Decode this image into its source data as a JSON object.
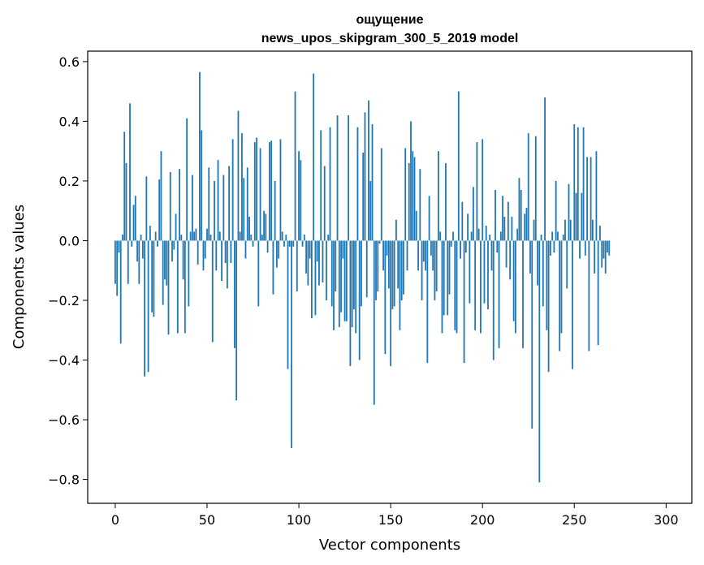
{
  "chart_data": {
    "type": "bar",
    "title_line1": "ощущение",
    "title_line2": "news_upos_skipgram_300_5_2019 model",
    "xlabel": "Vector components",
    "ylabel": "Components values",
    "xlim": [
      -15,
      314
    ],
    "ylim": [
      -0.88,
      0.635
    ],
    "x_ticks": [
      0,
      50,
      100,
      150,
      200,
      250,
      300
    ],
    "x_tick_labels": [
      "0",
      "50",
      "100",
      "150",
      "200",
      "250",
      "300"
    ],
    "y_ticks": [
      -0.8,
      -0.6,
      -0.4,
      -0.2,
      0.0,
      0.2,
      0.4,
      0.6
    ],
    "y_tick_labels": [
      "−0.8",
      "−0.6",
      "−0.4",
      "−0.2",
      "0.0",
      "0.2",
      "0.4",
      "0.6"
    ],
    "bar_color": "#1f77b4",
    "series": [
      {
        "name": "ощущение",
        "x_start": 0,
        "values": [
          -0.145,
          -0.185,
          -0.04,
          -0.345,
          0.02,
          0.365,
          0.26,
          -0.145,
          0.46,
          -0.02,
          0.12,
          0.15,
          -0.07,
          -0.145,
          0.02,
          -0.06,
          -0.455,
          0.215,
          -0.44,
          0.05,
          -0.24,
          -0.255,
          0.03,
          -0.02,
          0.205,
          0.3,
          -0.215,
          -0.13,
          -0.15,
          -0.315,
          0.23,
          -0.07,
          -0.03,
          0.09,
          -0.31,
          0.24,
          0.02,
          -0.13,
          -0.31,
          0.41,
          -0.22,
          0.03,
          0.22,
          0.03,
          0.04,
          -0.08,
          0.565,
          0.37,
          -0.1,
          -0.06,
          0.04,
          0.245,
          0.02,
          -0.34,
          0.2,
          -0.1,
          0.27,
          0.03,
          -0.135,
          0.22,
          -0.075,
          -0.16,
          0.25,
          -0.075,
          0.34,
          -0.36,
          -0.535,
          0.435,
          0.03,
          0.36,
          0.21,
          -0.06,
          0.245,
          0.08,
          0.02,
          -0.02,
          0.33,
          0.345,
          -0.22,
          0.31,
          0.02,
          0.1,
          0.09,
          -0.04,
          0.33,
          0.335,
          -0.18,
          0.2,
          -0.09,
          -0.06,
          0.34,
          0.03,
          -0.02,
          0.02,
          -0.43,
          -0.02,
          -0.695,
          -0.02,
          0.5,
          -0.17,
          0.3,
          0.27,
          -0.02,
          0.02,
          -0.11,
          -0.15,
          -0.06,
          -0.26,
          0.56,
          -0.25,
          -0.07,
          -0.15,
          0.37,
          -0.14,
          0.25,
          -0.2,
          0.02,
          0.38,
          -0.22,
          -0.3,
          -0.17,
          0.42,
          -0.29,
          -0.24,
          -0.06,
          -0.27,
          -0.27,
          0.42,
          -0.42,
          -0.29,
          -0.23,
          -0.31,
          0.38,
          -0.4,
          -0.22,
          0.295,
          0.43,
          -0.19,
          0.47,
          0.2,
          0.39,
          -0.55,
          -0.2,
          -0.17,
          -0.01,
          0.31,
          -0.1,
          -0.38,
          -0.05,
          -0.16,
          -0.42,
          -0.23,
          -0.22,
          0.07,
          -0.16,
          -0.3,
          -0.2,
          -0.18,
          0.31,
          -0.1,
          0.26,
          0.4,
          0.3,
          0.28,
          0.1,
          -0.1,
          0.24,
          -0.2,
          -0.07,
          -0.1,
          -0.41,
          0.15,
          -0.05,
          -0.1,
          -0.2,
          -0.17,
          0.3,
          0.03,
          -0.31,
          -0.25,
          0.26,
          -0.25,
          -0.18,
          -0.02,
          0.03,
          -0.3,
          -0.31,
          0.5,
          -0.06,
          0.13,
          -0.41,
          -0.04,
          0.09,
          -0.21,
          0.03,
          0.18,
          -0.3,
          0.33,
          0.04,
          -0.31,
          0.34,
          -0.21,
          0.05,
          -0.23,
          0.02,
          -0.1,
          -0.4,
          0.17,
          -0.04,
          -0.36,
          0.03,
          0.15,
          0.08,
          -0.09,
          0.13,
          -0.13,
          0.08,
          -0.27,
          -0.31,
          0.04,
          0.21,
          0.17,
          -0.36,
          0.09,
          0.11,
          0.36,
          -0.11,
          -0.63,
          0.07,
          0.35,
          -0.15,
          -0.81,
          0.02,
          -0.22,
          0.48,
          -0.3,
          -0.44,
          -0.05,
          0.03,
          -0.04,
          0.2,
          0.03,
          -0.37,
          -0.31,
          0.02,
          0.07,
          -0.16,
          0.19,
          0.07,
          -0.43,
          0.39,
          0.16,
          0.38,
          -0.06,
          0.16,
          0.38,
          -0.05,
          0.28,
          -0.37,
          0.28,
          0.07,
          -0.11,
          0.3,
          -0.35,
          0.05,
          -0.09,
          -0.06,
          -0.11,
          -0.04,
          -0.05
        ]
      }
    ]
  }
}
